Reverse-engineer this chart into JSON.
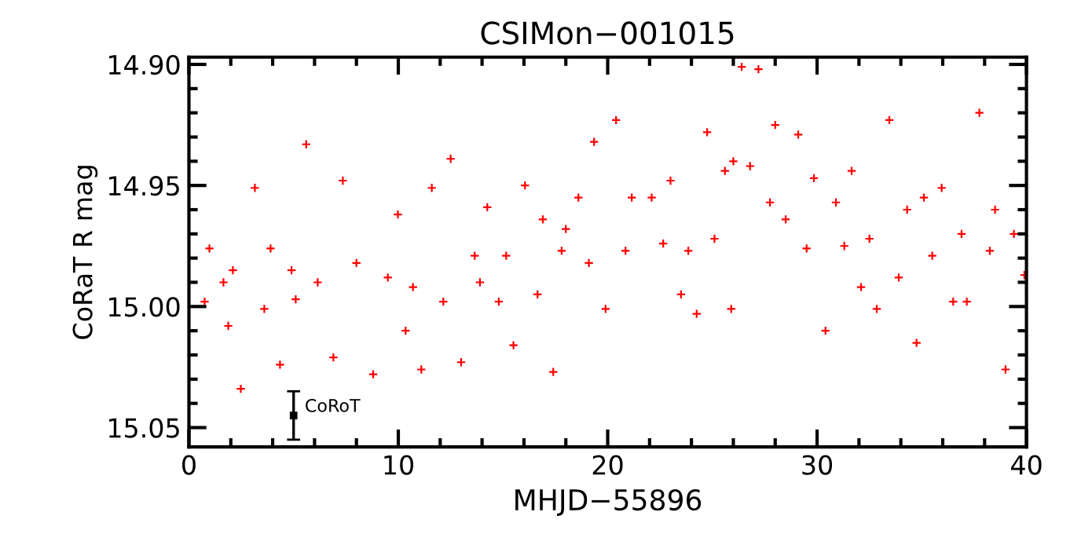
{
  "chart_data": {
    "type": "scatter",
    "title": "CSIMon−001015",
    "xlabel": "MHJD−55896",
    "ylabel": "CoRaT R mag",
    "xlim": [
      0,
      40
    ],
    "xticks": [
      0,
      10,
      20,
      30,
      40
    ],
    "ylim": [
      15.058,
      14.897
    ],
    "yticks": [
      {
        "value": 14.9,
        "label": "14.90"
      },
      {
        "value": 14.95,
        "label": "14.95"
      },
      {
        "value": 15.0,
        "label": "15.00"
      },
      {
        "value": 15.05,
        "label": "15.05"
      }
    ],
    "grid": false,
    "marker": "cross",
    "series": [
      {
        "color": "#ff0000",
        "x": [
          0.75,
          0.98,
          1.65,
          1.88,
          2.1,
          2.48,
          3.15,
          3.6,
          3.9,
          4.35,
          4.9,
          5.1,
          5.6,
          6.15,
          6.9,
          7.35,
          8.0,
          8.8,
          9.5,
          9.98,
          10.35,
          10.7,
          11.1,
          11.6,
          12.15,
          12.5,
          13.0,
          13.65,
          13.9,
          14.25,
          14.8,
          15.15,
          15.5,
          16.05,
          16.65,
          16.9,
          17.4,
          17.8,
          18.0,
          18.6,
          19.1,
          19.35,
          19.9,
          20.4,
          20.85,
          21.15,
          22.1,
          22.65,
          23.0,
          23.5,
          23.85,
          24.25,
          24.75,
          25.1,
          25.6,
          25.9,
          26.0,
          26.4,
          26.8,
          27.2,
          27.75,
          28.0,
          28.5,
          29.1,
          29.5,
          29.85,
          30.4,
          30.9,
          31.3,
          31.65,
          32.1,
          32.5,
          32.85,
          33.45,
          33.9,
          34.3,
          34.75,
          35.1,
          35.5,
          35.95,
          36.5,
          36.9,
          37.15,
          37.75,
          38.25,
          38.5,
          39.0,
          39.4,
          39.9
        ],
        "values": [
          14.998,
          14.976,
          14.99,
          15.008,
          14.985,
          15.034,
          14.951,
          15.001,
          14.976,
          15.024,
          14.985,
          14.997,
          14.933,
          14.99,
          15.021,
          14.948,
          14.982,
          15.028,
          14.988,
          14.962,
          15.01,
          14.992,
          15.026,
          14.951,
          14.998,
          14.939,
          15.023,
          14.979,
          14.99,
          14.959,
          14.998,
          14.979,
          15.016,
          14.95,
          14.995,
          14.964,
          15.027,
          14.977,
          14.968,
          14.955,
          14.982,
          14.932,
          15.001,
          14.923,
          14.977,
          14.955,
          14.955,
          14.974,
          14.948,
          14.995,
          14.977,
          15.003,
          14.928,
          14.972,
          14.944,
          15.001,
          14.94,
          14.901,
          14.942,
          14.902,
          14.957,
          14.925,
          14.964,
          14.929,
          14.976,
          14.947,
          15.01,
          14.957,
          14.975,
          14.944,
          14.992,
          14.972,
          15.001,
          14.923,
          14.988,
          14.96,
          15.015,
          14.955,
          14.979,
          14.951,
          14.998,
          14.97,
          14.998,
          14.92,
          14.977,
          14.96,
          15.026,
          14.97,
          14.987
        ]
      },
      {
        "name": "CoRoT",
        "color": "#000000",
        "marker": "square",
        "x": [
          5
        ],
        "values": [
          15.045
        ],
        "errors": [
          0.01
        ]
      }
    ]
  }
}
